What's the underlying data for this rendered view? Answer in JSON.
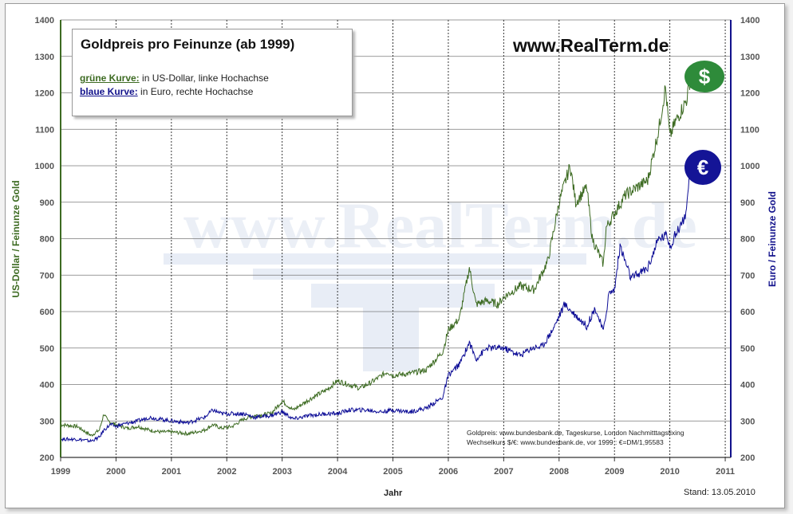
{
  "chart_data": {
    "type": "line",
    "title": "Goldpreis pro Feinunze (ab 1999)",
    "website": "www.RealTerm.de",
    "legend": [
      {
        "key": "grüne Kurve:",
        "text": " in US-Dollar, linke Hochachse"
      },
      {
        "key": "blaue Kurve:",
        "text": " in Euro, rechte Hochachse"
      }
    ],
    "xlabel": "Jahr",
    "ylabel_left": "US-Dollar / Feinunze Gold",
    "ylabel_right": "Euro / Feinunze Gold",
    "ylim": [
      200,
      1400
    ],
    "xlim": [
      1999,
      2011.1
    ],
    "y_ticks": [
      "200",
      "300",
      "400",
      "500",
      "600",
      "700",
      "800",
      "900",
      "1000",
      "1100",
      "1200",
      "1300",
      "1400"
    ],
    "x_ticks": [
      "1999",
      "2000",
      "2001",
      "2002",
      "2003",
      "2004",
      "2005",
      "2006",
      "2007",
      "2008",
      "2009",
      "2010",
      "2011"
    ],
    "grid": true,
    "source_lines": [
      "Goldpreis: www.bundesbank.de, Tageskurse, London Nachmitttagsfixing",
      "Wechselkurs $/€: www.bundesbank.de, vor 1999 : €=DM/1,95583"
    ],
    "stand": "Stand: 13.05.2010",
    "colors": {
      "usd": "#3d6b22",
      "eur": "#0c0c96",
      "axis_left": "#3d6b22",
      "axis_right": "#12128c"
    },
    "series": [
      {
        "name": "US-Dollar",
        "axis": "left",
        "x": [
          1999.0,
          1999.3,
          1999.55,
          1999.7,
          1999.78,
          1999.85,
          2000.0,
          2000.2,
          2000.4,
          2000.6,
          2000.8,
          2001.0,
          2001.3,
          2001.6,
          2001.75,
          2001.9,
          2002.1,
          2002.3,
          2002.5,
          2002.8,
          2003.0,
          2003.2,
          2003.5,
          2003.8,
          2004.0,
          2004.2,
          2004.4,
          2004.6,
          2004.9,
          2005.0,
          2005.3,
          2005.6,
          2005.9,
          2006.0,
          2006.2,
          2006.38,
          2006.5,
          2006.7,
          2006.9,
          2007.0,
          2007.3,
          2007.55,
          2007.8,
          2008.0,
          2008.2,
          2008.3,
          2008.5,
          2008.6,
          2008.8,
          2008.85,
          2009.0,
          2009.2,
          2009.4,
          2009.6,
          2009.8,
          2009.92,
          2010.0,
          2010.1,
          2010.2,
          2010.3,
          2010.37
        ],
        "y": [
          290,
          285,
          260,
          275,
          320,
          300,
          290,
          280,
          285,
          275,
          270,
          270,
          265,
          275,
          290,
          280,
          285,
          305,
          315,
          320,
          355,
          330,
          360,
          385,
          410,
          400,
          390,
          405,
          435,
          425,
          430,
          440,
          490,
          550,
          580,
          720,
          620,
          630,
          620,
          640,
          670,
          660,
          740,
          900,
          1000,
          900,
          940,
          800,
          730,
          830,
          870,
          920,
          940,
          960,
          1100,
          1215,
          1080,
          1120,
          1150,
          1180,
          1240
        ]
      },
      {
        "name": "Euro",
        "axis": "right",
        "x": [
          1999.0,
          1999.3,
          1999.55,
          1999.7,
          1999.78,
          1999.9,
          2000.0,
          2000.1,
          2000.4,
          2000.6,
          2000.8,
          2001.0,
          2001.3,
          2001.6,
          2001.75,
          2001.9,
          2002.1,
          2002.3,
          2002.5,
          2002.8,
          2003.0,
          2003.2,
          2003.5,
          2003.8,
          2004.0,
          2004.2,
          2004.5,
          2004.8,
          2005.0,
          2005.3,
          2005.6,
          2005.9,
          2006.0,
          2006.2,
          2006.38,
          2006.5,
          2006.7,
          2007.0,
          2007.3,
          2007.5,
          2007.7,
          2007.9,
          2008.1,
          2008.3,
          2008.5,
          2008.65,
          2008.8,
          2008.9,
          2009.0,
          2009.1,
          2009.3,
          2009.6,
          2009.8,
          2009.95,
          2010.0,
          2010.1,
          2010.2,
          2010.3,
          2010.37
        ],
        "y": [
          250,
          250,
          245,
          255,
          275,
          290,
          285,
          290,
          300,
          310,
          305,
          300,
          295,
          310,
          330,
          320,
          320,
          320,
          310,
          315,
          325,
          305,
          315,
          320,
          320,
          330,
          330,
          325,
          330,
          325,
          335,
          365,
          425,
          455,
          515,
          470,
          500,
          500,
          480,
          500,
          505,
          555,
          620,
          590,
          560,
          610,
          545,
          650,
          660,
          780,
          690,
          720,
          800,
          810,
          780,
          810,
          840,
          870,
          990
        ]
      }
    ]
  }
}
